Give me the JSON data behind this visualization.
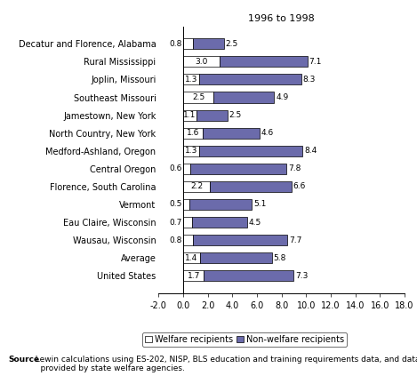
{
  "title": "1996 to 1998",
  "categories": [
    "United States",
    "Average",
    "Wausau, Wisconsin",
    "Eau Claire, Wisconsin",
    "Vermont",
    "Florence, South Carolina",
    "Central Oregon",
    "Medford-Ashland, Oregon",
    "North Country, New York",
    "Jamestown, New York",
    "Southeast Missouri",
    "Joplin, Missouri",
    "Rural Mississippi",
    "Decatur and Florence, Alabama"
  ],
  "welfare": [
    1.7,
    1.4,
    0.8,
    0.7,
    0.5,
    2.2,
    0.6,
    1.3,
    1.6,
    1.1,
    2.5,
    1.3,
    3.0,
    0.8
  ],
  "nonwelfare": [
    7.3,
    5.8,
    7.7,
    4.5,
    5.1,
    6.6,
    7.8,
    8.4,
    4.6,
    2.5,
    4.9,
    8.3,
    7.1,
    2.5
  ],
  "welfare_color": "#ffffff",
  "nonwelfare_color": "#6b6bab",
  "bar_edge_color": "#000000",
  "xlim": [
    -2.0,
    18.0
  ],
  "xticks": [
    -2.0,
    0.0,
    2.0,
    4.0,
    6.0,
    8.0,
    10.0,
    12.0,
    14.0,
    16.0,
    18.0
  ],
  "legend_welfare": "Welfare recipients",
  "legend_nonwelfare": "Non-welfare recipients",
  "source_bold": "Source",
  "source_rest": ": Lewin calculations using ES-202, NISP, BLS education and training requirements data, and data\n    provided by state welfare agencies.",
  "title_fontsize": 8,
  "label_fontsize": 7,
  "tick_fontsize": 7,
  "annotation_fontsize": 6.5,
  "legend_fontsize": 7,
  "background_color": "#ffffff"
}
